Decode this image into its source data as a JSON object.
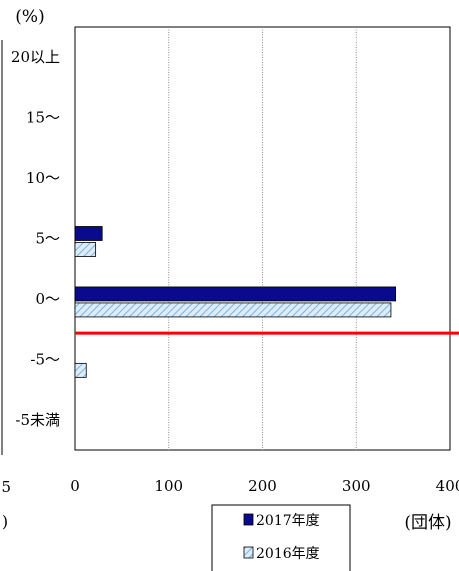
{
  "chart_data": {
    "type": "bar",
    "orientation": "horizontal",
    "y_unit_label": "(%)",
    "x_unit_label": "(団体)",
    "categories": [
      "20以上",
      "15～",
      "10～",
      "5～",
      "0～",
      "-5～",
      "-5未満"
    ],
    "series": [
      {
        "name": "2017年度",
        "values": [
          0,
          0,
          0,
          29,
          342,
          0,
          0
        ],
        "color": "#0a0a8c",
        "pattern": "solid"
      },
      {
        "name": "2016年度",
        "values": [
          0,
          0,
          0,
          22,
          337,
          12,
          0
        ],
        "color": "#dcecf8",
        "pattern": "hatch"
      }
    ],
    "xlim": [
      0,
      400
    ],
    "x_ticks": [
      0,
      100,
      200,
      300,
      400
    ],
    "x_tick_labels": [
      "0",
      "100",
      "200",
      "300",
      "400"
    ],
    "grid": "vertical",
    "reference_line": {
      "between": [
        "0～",
        "-5～"
      ],
      "color": "#ff0000"
    },
    "legend_position": "bottom",
    "left_cropped_labels": [
      "5",
      ")"
    ]
  }
}
